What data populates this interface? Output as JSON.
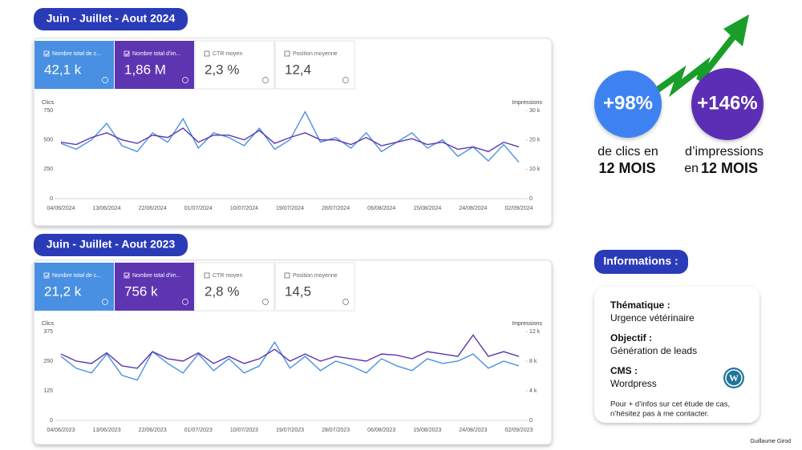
{
  "panels": [
    {
      "heading": "Juin - Juillet - Aout 2024",
      "metrics": [
        {
          "label": "Nombre total de c...",
          "value": "42,1 k",
          "checked": true
        },
        {
          "label": "Nombre total d'im...",
          "value": "1,86 M",
          "checked": true
        },
        {
          "label": "CTR moyen",
          "value": "2,3 %",
          "checked": false
        },
        {
          "label": "Position moyenne",
          "value": "12,4",
          "checked": false
        }
      ]
    },
    {
      "heading": "Juin - Juillet - Aout 2023",
      "metrics": [
        {
          "label": "Nombre total de c...",
          "value": "21,2 k",
          "checked": true
        },
        {
          "label": "Nombre total d'im...",
          "value": "756 k",
          "checked": true
        },
        {
          "label": "CTR moyen",
          "value": "2,8 %",
          "checked": false
        },
        {
          "label": "Position moyenne",
          "value": "14,5",
          "checked": false
        }
      ]
    }
  ],
  "chart_data": [
    {
      "type": "line",
      "y_label": "Clics",
      "y2_label": "Impressions",
      "categories": [
        "04/06/2024",
        null,
        null,
        "13/06/2024",
        null,
        null,
        "22/06/2024",
        null,
        null,
        "01/07/2024",
        null,
        null,
        "10/07/2024",
        null,
        null,
        "19/07/2024",
        null,
        null,
        "28/07/2024",
        null,
        null,
        "06/08/2024",
        null,
        null,
        "15/08/2024",
        null,
        null,
        "24/08/2024",
        null,
        null,
        "02/09/2024"
      ],
      "ylim": [
        0,
        750
      ],
      "yticks": [
        0,
        250,
        500,
        750
      ],
      "y2lim": [
        0,
        30000
      ],
      "y2ticks": [
        0,
        {
          "value": 10000,
          "label": "10 k"
        },
        {
          "value": 20000,
          "label": "20 k"
        },
        {
          "value": 30000,
          "label": "30 k"
        }
      ],
      "series": [
        {
          "name": "Clics",
          "color": "#4a90e2",
          "values": [
            470,
            420,
            500,
            640,
            450,
            400,
            560,
            480,
            680,
            430,
            560,
            520,
            450,
            600,
            420,
            500,
            740,
            480,
            520,
            430,
            560,
            400,
            480,
            560,
            430,
            500,
            360,
            440,
            320,
            460,
            310
          ]
        },
        {
          "name": "Impressions",
          "color": "#5e35b1",
          "axis": "y2",
          "values": [
            19200,
            18400,
            20800,
            22400,
            20000,
            18800,
            21600,
            20800,
            24000,
            19200,
            21600,
            21600,
            20000,
            23200,
            18800,
            20800,
            22400,
            20000,
            20000,
            18400,
            20800,
            18000,
            19200,
            20400,
            18400,
            19200,
            16800,
            17600,
            16000,
            19200,
            17600
          ]
        }
      ]
    },
    {
      "type": "line",
      "y_label": "Clics",
      "y2_label": "Impressions",
      "categories": [
        "04/06/2023",
        null,
        null,
        "13/06/2023",
        null,
        null,
        "22/06/2023",
        null,
        null,
        "01/07/2023",
        null,
        null,
        "10/07/2023",
        null,
        null,
        "19/07/2023",
        null,
        null,
        "28/07/2023",
        null,
        null,
        "06/08/2023",
        null,
        null,
        "15/08/2023",
        null,
        null,
        "24/08/2023",
        null,
        null,
        "02/09/2023"
      ],
      "ylim": [
        0,
        375
      ],
      "yticks": [
        0,
        125,
        250,
        375
      ],
      "y2lim": [
        0,
        12000
      ],
      "y2ticks": [
        0,
        {
          "value": 4000,
          "label": "4 k"
        },
        {
          "value": 8000,
          "label": "8 k"
        },
        {
          "value": 12000,
          "label": "12 k"
        }
      ],
      "series": [
        {
          "name": "Clics",
          "color": "#4a90e2",
          "values": [
            270,
            220,
            200,
            280,
            190,
            170,
            290,
            240,
            200,
            280,
            210,
            260,
            200,
            230,
            330,
            220,
            270,
            210,
            250,
            230,
            200,
            260,
            230,
            210,
            260,
            240,
            250,
            280,
            220,
            250,
            230
          ]
        },
        {
          "name": "Impressions",
          "color": "#5e35b1",
          "axis": "y2",
          "values": [
            8960,
            8000,
            7680,
            9120,
            7360,
            7040,
            9280,
            8320,
            8000,
            9120,
            7680,
            8640,
            7680,
            8320,
            9600,
            8000,
            8960,
            8000,
            8640,
            8320,
            8000,
            8960,
            8800,
            8320,
            9280,
            8960,
            8640,
            11520,
            8640,
            9280,
            8640
          ]
        }
      ]
    }
  ],
  "stats": [
    {
      "value": "+98%",
      "caption": "de clics en",
      "bold": "12 MOIS"
    },
    {
      "value": "+146%",
      "caption": "d’impressions",
      "prefix": "en",
      "bold": "12 MOIS"
    }
  ],
  "info": {
    "heading": "Informations :",
    "items": [
      {
        "label": "Thématique :",
        "text": "Urgence vétérinaire"
      },
      {
        "label": "Objectif :",
        "text": "Génération de leads"
      },
      {
        "label": "CMS :",
        "text": "Wordpress"
      }
    ],
    "note": [
      "Pour + d’infos sur cet étude de cas,",
      "n’hésitez pas à me contacter."
    ]
  },
  "footer": "Guillaume Girod"
}
